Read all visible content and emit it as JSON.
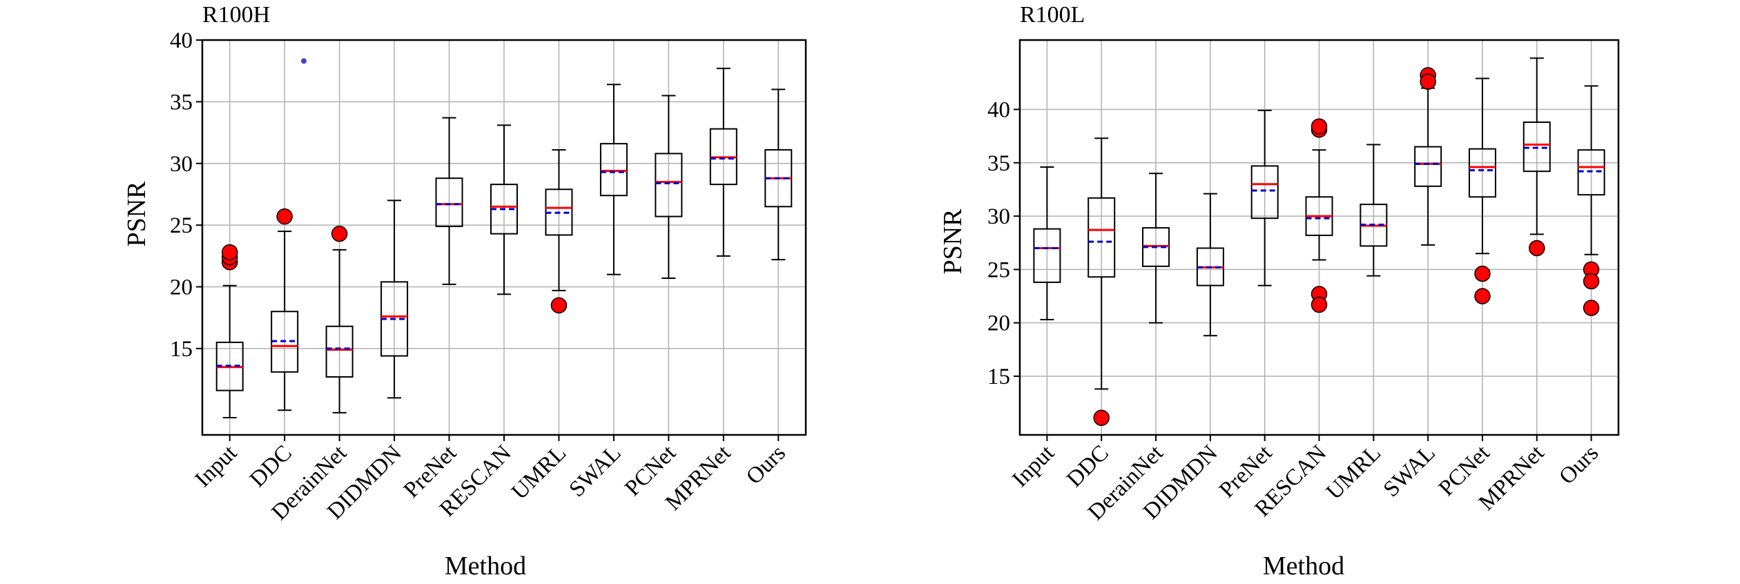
{
  "colors": {
    "median": "#ff0000",
    "mean": "#0000cc",
    "outlier": "#ff0000",
    "box": "#000000",
    "grid": "#b0b0b0"
  },
  "chart_data": [
    {
      "type": "box",
      "title": "R100H",
      "xlabel": "Method",
      "ylabel": "PSNR",
      "ylim": [
        8,
        40
      ],
      "yticks": [
        15,
        20,
        25,
        30,
        35,
        40
      ],
      "grid": true,
      "categories": [
        "Input",
        "DDC",
        "DerainNet",
        "DIDMDN",
        "PreNet",
        "RESCAN",
        "UMRL",
        "SWAL",
        "PCNet",
        "MPRNet",
        "Ours"
      ],
      "boxes": [
        {
          "whislo": 9.4,
          "q1": 11.6,
          "med": 13.5,
          "mean": 13.6,
          "q3": 15.5,
          "whishi": 20.1,
          "fliers": [
            22.0,
            22.4,
            22.8
          ]
        },
        {
          "whislo": 10.0,
          "q1": 13.1,
          "med": 15.2,
          "mean": 15.6,
          "q3": 18.0,
          "whishi": 24.5,
          "fliers": [
            25.7
          ]
        },
        {
          "whislo": 9.8,
          "q1": 12.7,
          "med": 14.9,
          "mean": 15.0,
          "q3": 16.8,
          "whishi": 23.0,
          "fliers": [
            24.3
          ]
        },
        {
          "whislo": 11.0,
          "q1": 14.4,
          "med": 17.6,
          "mean": 17.4,
          "q3": 20.4,
          "whishi": 27.0,
          "fliers": []
        },
        {
          "whislo": 20.2,
          "q1": 24.9,
          "med": 26.7,
          "mean": 26.7,
          "q3": 28.8,
          "whishi": 33.7,
          "fliers": []
        },
        {
          "whislo": 19.4,
          "q1": 24.3,
          "med": 26.5,
          "mean": 26.3,
          "q3": 28.3,
          "whishi": 33.1,
          "fliers": []
        },
        {
          "whislo": 19.7,
          "q1": 24.2,
          "med": 26.4,
          "mean": 26.0,
          "q3": 27.9,
          "whishi": 31.1,
          "fliers": [
            18.5
          ]
        },
        {
          "whislo": 21.0,
          "q1": 27.4,
          "med": 29.4,
          "mean": 29.3,
          "q3": 31.6,
          "whishi": 36.4,
          "fliers": []
        },
        {
          "whislo": 20.7,
          "q1": 25.7,
          "med": 28.5,
          "mean": 28.4,
          "q3": 30.8,
          "whishi": 35.5,
          "fliers": []
        },
        {
          "whislo": 22.5,
          "q1": 28.3,
          "med": 30.5,
          "mean": 30.4,
          "q3": 32.8,
          "whishi": 37.7,
          "fliers": []
        },
        {
          "whislo": 22.2,
          "q1": 26.5,
          "med": 28.8,
          "mean": 28.8,
          "q3": 31.1,
          "whishi": 36.0,
          "fliers": []
        }
      ],
      "extra_points": [
        {
          "category_index": 1.35,
          "y": 38.3
        }
      ]
    },
    {
      "type": "box",
      "title": "R100L",
      "xlabel": "Method",
      "ylabel": "PSNR",
      "ylim": [
        9.5,
        46.5
      ],
      "yticks": [
        15,
        20,
        25,
        30,
        35,
        40
      ],
      "grid": true,
      "categories": [
        "Input",
        "DDC",
        "DerainNet",
        "DIDMDN",
        "PreNet",
        "RESCAN",
        "UMRL",
        "SWAL",
        "PCNet",
        "MPRNet",
        "Ours"
      ],
      "boxes": [
        {
          "whislo": 20.3,
          "q1": 23.8,
          "med": 27.0,
          "mean": 27.0,
          "q3": 28.8,
          "whishi": 34.6,
          "fliers": []
        },
        {
          "whislo": 13.8,
          "q1": 24.3,
          "med": 28.7,
          "mean": 27.6,
          "q3": 31.7,
          "whishi": 37.3,
          "fliers": [
            11.1
          ]
        },
        {
          "whislo": 20.0,
          "q1": 25.3,
          "med": 27.2,
          "mean": 27.1,
          "q3": 28.9,
          "whishi": 34.0,
          "fliers": []
        },
        {
          "whislo": 18.8,
          "q1": 23.5,
          "med": 25.2,
          "mean": 25.2,
          "q3": 27.0,
          "whishi": 32.1,
          "fliers": []
        },
        {
          "whislo": 23.5,
          "q1": 29.8,
          "med": 33.0,
          "mean": 32.4,
          "q3": 34.7,
          "whishi": 39.9,
          "fliers": []
        },
        {
          "whislo": 25.9,
          "q1": 28.2,
          "med": 30.0,
          "mean": 29.8,
          "q3": 31.8,
          "whishi": 36.2,
          "fliers": [
            38.1,
            38.4,
            22.7,
            21.7
          ]
        },
        {
          "whislo": 24.4,
          "q1": 27.2,
          "med": 29.1,
          "mean": 29.2,
          "q3": 31.1,
          "whishi": 36.7,
          "fliers": []
        },
        {
          "whislo": 27.3,
          "q1": 32.8,
          "med": 34.9,
          "mean": 34.9,
          "q3": 36.5,
          "whishi": 42.0,
          "fliers": [
            43.2,
            42.6
          ]
        },
        {
          "whislo": 26.5,
          "q1": 31.8,
          "med": 34.6,
          "mean": 34.3,
          "q3": 36.3,
          "whishi": 42.9,
          "fliers": [
            24.6,
            22.5
          ]
        },
        {
          "whislo": 28.3,
          "q1": 34.2,
          "med": 36.7,
          "mean": 36.4,
          "q3": 38.8,
          "whishi": 44.8,
          "fliers": [
            27.0
          ]
        },
        {
          "whislo": 26.4,
          "q1": 32.0,
          "med": 34.6,
          "mean": 34.2,
          "q3": 36.2,
          "whishi": 42.2,
          "fliers": [
            25.0,
            23.9,
            21.4
          ]
        }
      ]
    }
  ]
}
